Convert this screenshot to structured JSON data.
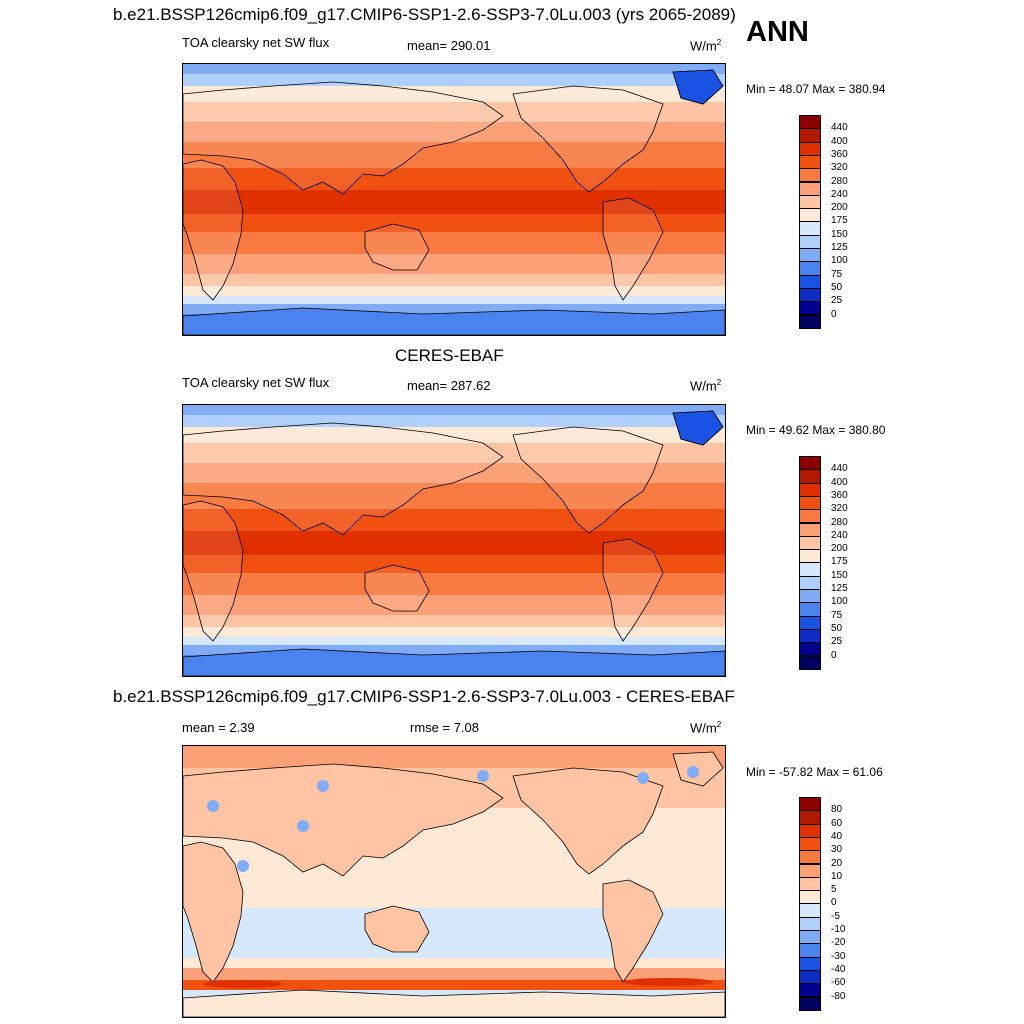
{
  "panel1": {
    "title": "b.e21.BSSP126cmip6.f09_g17.CMIP6-SSP1-2.6-SSP3-7.0Lu.003 (yrs 2065-2089)",
    "season": "ANN",
    "left_label": "TOA clearsky net SW flux",
    "center_label": "mean= 290.01",
    "units": "W/m",
    "units_exp": "2",
    "minmax": "Min =  48.07 Max = 380.94",
    "colorbar_labels": [
      "440",
      "400",
      "360",
      "320",
      "280",
      "240",
      "200",
      "175",
      "150",
      "125",
      "100",
      "75",
      "50",
      "25",
      "0"
    ]
  },
  "panel2": {
    "title": "CERES-EBAF",
    "left_label": "TOA clearsky net SW flux",
    "center_label": "mean= 287.62",
    "units": "W/m",
    "units_exp": "2",
    "minmax": "Min =  49.62 Max = 380.80",
    "colorbar_labels": [
      "440",
      "400",
      "360",
      "320",
      "280",
      "240",
      "200",
      "175",
      "150",
      "125",
      "100",
      "75",
      "50",
      "25",
      "0"
    ]
  },
  "panel3": {
    "title": "b.e21.BSSP126cmip6.f09_g17.CMIP6-SSP1-2.6-SSP3-7.0Lu.003 - CERES-EBAF",
    "left_label": "mean =   2.39",
    "center_label": "rmse =   7.08",
    "units": "W/m",
    "units_exp": "2",
    "minmax": "Min = -57.82 Max =  61.06",
    "colorbar_labels": [
      "80",
      "60",
      "40",
      "30",
      "20",
      "10",
      "5",
      "0",
      "-5",
      "-10",
      "-20",
      "-30",
      "-40",
      "-60",
      "-80"
    ]
  },
  "colors": {
    "abs_scale": [
      "#8b0000",
      "#b01800",
      "#e03000",
      "#f05010",
      "#f87a40",
      "#fca078",
      "#fec4a4",
      "#fee8d6",
      "#d6e8fc",
      "#aed0fa",
      "#80acf6",
      "#4a82ee",
      "#1a52e4",
      "#0c2cc4",
      "#000090",
      "#000060"
    ],
    "diff_scale": [
      "#8b0000",
      "#b01800",
      "#e03000",
      "#f05010",
      "#f87a40",
      "#fca078",
      "#fec4a4",
      "#fee8d6",
      "#d6e8fc",
      "#aed0fa",
      "#80acf6",
      "#4a82ee",
      "#1a52e4",
      "#0c2cc4",
      "#000090",
      "#000060"
    ],
    "coastline": "#000000"
  }
}
